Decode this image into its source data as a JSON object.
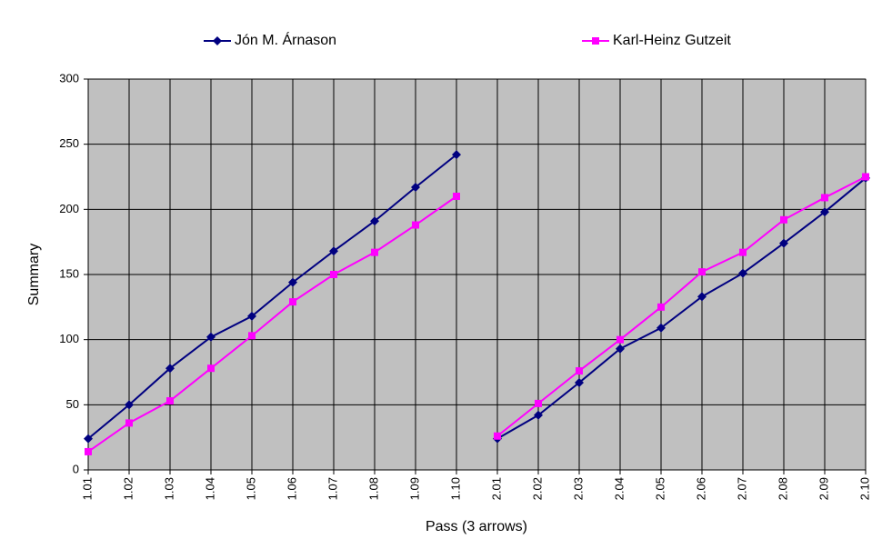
{
  "chart_data": {
    "type": "line",
    "x_label": "Pass (3 arrows)",
    "y_label": "Summary",
    "categories": [
      "1.01",
      "1.02",
      "1.03",
      "1.04",
      "1.05",
      "1.06",
      "1.07",
      "1.08",
      "1.09",
      "1.10",
      "2.01",
      "2.02",
      "2.03",
      "2.04",
      "2.05",
      "2.06",
      "2.07",
      "2.08",
      "2.09",
      "2.10"
    ],
    "series": [
      {
        "name": "Jón M. Árnason",
        "color": "#000080",
        "marker": "diamond",
        "values": [
          24,
          50,
          78,
          102,
          118,
          144,
          168,
          191,
          217,
          242,
          24,
          42,
          67,
          93,
          109,
          133,
          151,
          174,
          198,
          224
        ]
      },
      {
        "name": "Karl-Heinz Gutzeit",
        "color": "#ff00ff",
        "marker": "square",
        "values": [
          14,
          36,
          53,
          78,
          103,
          129,
          150,
          167,
          188,
          210,
          26,
          51,
          76,
          100,
          125,
          152,
          167,
          192,
          209,
          225
        ]
      }
    ],
    "ylim": [
      0,
      300
    ],
    "yticks": [
      0,
      50,
      100,
      150,
      200,
      250,
      300
    ],
    "grid": true,
    "legend": "top"
  }
}
